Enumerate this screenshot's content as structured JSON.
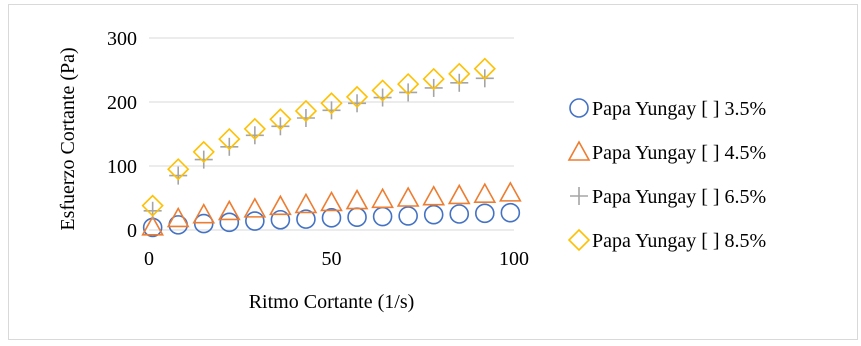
{
  "chart_data": {
    "type": "scatter",
    "title": "",
    "xlabel": "Ritmo Cortante (1/s)",
    "ylabel": "Esfuerzo Cortante (Pa)",
    "xlim": [
      0,
      100
    ],
    "ylim": [
      0,
      300
    ],
    "xticks": [
      0,
      50,
      100
    ],
    "yticks": [
      0,
      100,
      200,
      300
    ],
    "grid": "horizontal",
    "legend_position": "right",
    "series": [
      {
        "name": "Papa Yungay [ ] 3.5%",
        "marker": "circle",
        "color": "#4472c4",
        "points": [
          [
            1,
            4
          ],
          [
            8,
            8
          ],
          [
            15,
            10
          ],
          [
            22,
            12
          ],
          [
            29,
            14
          ],
          [
            36,
            16
          ],
          [
            43,
            17
          ],
          [
            50,
            19
          ],
          [
            57,
            20
          ],
          [
            64,
            21
          ],
          [
            71,
            22
          ],
          [
            78,
            24
          ],
          [
            85,
            25
          ],
          [
            92,
            26
          ],
          [
            99,
            27
          ]
        ]
      },
      {
        "name": "Papa Yungay [ ] 4.5%",
        "marker": "triangle",
        "color": "#ed7d31",
        "points": [
          [
            1,
            5
          ],
          [
            8,
            18
          ],
          [
            15,
            24
          ],
          [
            22,
            29
          ],
          [
            29,
            33
          ],
          [
            36,
            37
          ],
          [
            43,
            40
          ],
          [
            50,
            43
          ],
          [
            57,
            46
          ],
          [
            64,
            48
          ],
          [
            71,
            50
          ],
          [
            78,
            52
          ],
          [
            85,
            54
          ],
          [
            92,
            56
          ],
          [
            99,
            58
          ]
        ]
      },
      {
        "name": "Papa Yungay [ ] 6.5%",
        "marker": "plus",
        "color": "#a5a5a5",
        "points": [
          [
            1,
            30
          ],
          [
            8,
            85
          ],
          [
            15,
            110
          ],
          [
            22,
            130
          ],
          [
            29,
            148
          ],
          [
            36,
            162
          ],
          [
            43,
            175
          ],
          [
            50,
            187
          ],
          [
            57,
            198
          ],
          [
            64,
            207
          ],
          [
            71,
            215
          ],
          [
            78,
            222
          ],
          [
            85,
            230
          ],
          [
            92,
            237
          ]
        ]
      },
      {
        "name": "Papa Yungay [ ] 8.5%",
        "marker": "diamond",
        "color": "#ffc000",
        "points": [
          [
            1,
            38
          ],
          [
            8,
            95
          ],
          [
            15,
            122
          ],
          [
            22,
            142
          ],
          [
            29,
            158
          ],
          [
            36,
            173
          ],
          [
            43,
            186
          ],
          [
            50,
            198
          ],
          [
            57,
            208
          ],
          [
            64,
            218
          ],
          [
            71,
            228
          ],
          [
            78,
            236
          ],
          [
            85,
            244
          ],
          [
            92,
            252
          ]
        ]
      }
    ]
  }
}
